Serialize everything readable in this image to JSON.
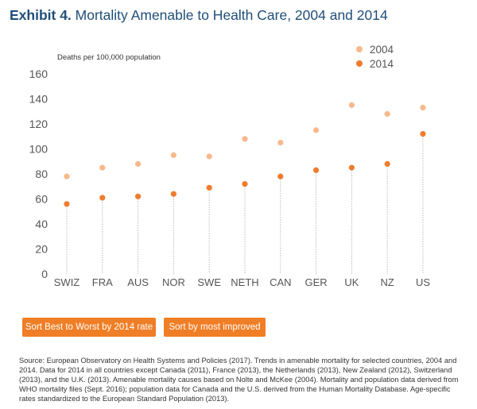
{
  "title": {
    "exhibit": "Exhibit 4.",
    "text": "Mortality Amenable to Health Care, 2004 and 2014"
  },
  "chart_data": {
    "type": "scatter",
    "ylabel": "Deaths per 100,000 population",
    "ylim": [
      0,
      160
    ],
    "yticks": [
      0,
      20,
      40,
      60,
      80,
      100,
      120,
      140,
      160
    ],
    "categories": [
      "SWIZ",
      "FRA",
      "AUS",
      "NOR",
      "SWE",
      "NETH",
      "CAN",
      "GER",
      "UK",
      "NZ",
      "US"
    ],
    "series": [
      {
        "name": "2004",
        "color": "#f7b98c",
        "values": [
          78,
          85,
          88,
          95,
          94,
          108,
          105,
          115,
          135,
          128,
          133
        ]
      },
      {
        "name": "2014",
        "color": "#ee7d2e",
        "values": [
          56,
          61,
          62,
          64,
          69,
          72,
          78,
          83,
          85,
          88,
          112
        ]
      }
    ],
    "legend": "top-right",
    "grid": false
  },
  "buttons": {
    "sort_best": "Sort Best to Worst by 2014 rate",
    "sort_improved": "Sort by most improved"
  },
  "source": "Source: European Observatory on Health Systems and Policies (2017). Trends in amenable mortality for selected countries, 2004 and 2014. Data for 2014 in all countries except Canada (2011), France (2013), the Netherlands (2013), New Zealand (2012), Switzerland (2013), and the U.K. (2013). Amenable mortality causes based on Nolte and McKee (2004). Mortality and population data derived from WHO mortality files (Sept. 2016); population data for Canada and the U.S. derived from the Human Mortality Database. Age-specific rates standardized to the European Standard Population (2013)."
}
